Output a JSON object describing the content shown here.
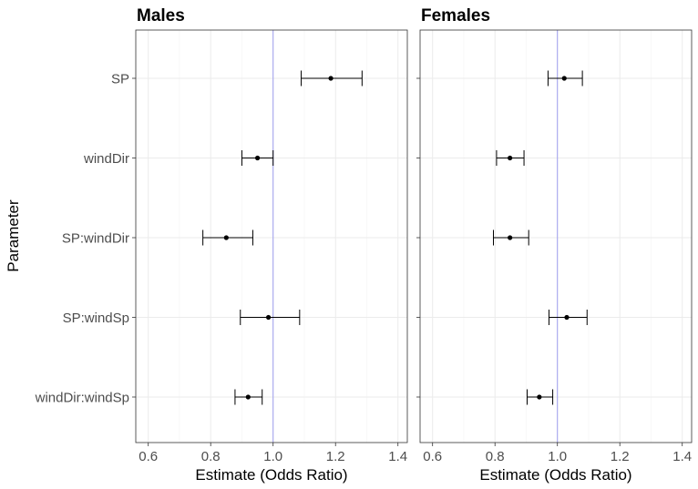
{
  "chart_data": {
    "type": "forest",
    "xlabel": "Estimate (Odds Ratio)",
    "ylabel": "Parameter",
    "xlim": [
      0.56,
      1.43
    ],
    "xticks": [
      0.6,
      0.8,
      1.0,
      1.2,
      1.4
    ],
    "xtick_labels": [
      "0.6",
      "0.8",
      "1.0",
      "1.2",
      "1.4"
    ],
    "categories": [
      "SP",
      "windDir",
      "SP:windDir",
      "SP:windSp",
      "windDir:windSp"
    ],
    "reference_line": 1.0,
    "reference_color": "#9f9fef",
    "panels": [
      {
        "title": "Males",
        "estimates": [
          1.185,
          0.95,
          0.85,
          0.985,
          0.92
        ],
        "lower": [
          1.09,
          0.9,
          0.775,
          0.895,
          0.878
        ],
        "upper": [
          1.285,
          1.0,
          0.935,
          1.085,
          0.965
        ]
      },
      {
        "title": "Females",
        "estimates": [
          1.022,
          0.848,
          0.848,
          1.03,
          0.942
        ],
        "lower": [
          0.97,
          0.805,
          0.795,
          0.973,
          0.903
        ],
        "upper": [
          1.08,
          0.893,
          0.908,
          1.095,
          0.985
        ]
      }
    ]
  }
}
